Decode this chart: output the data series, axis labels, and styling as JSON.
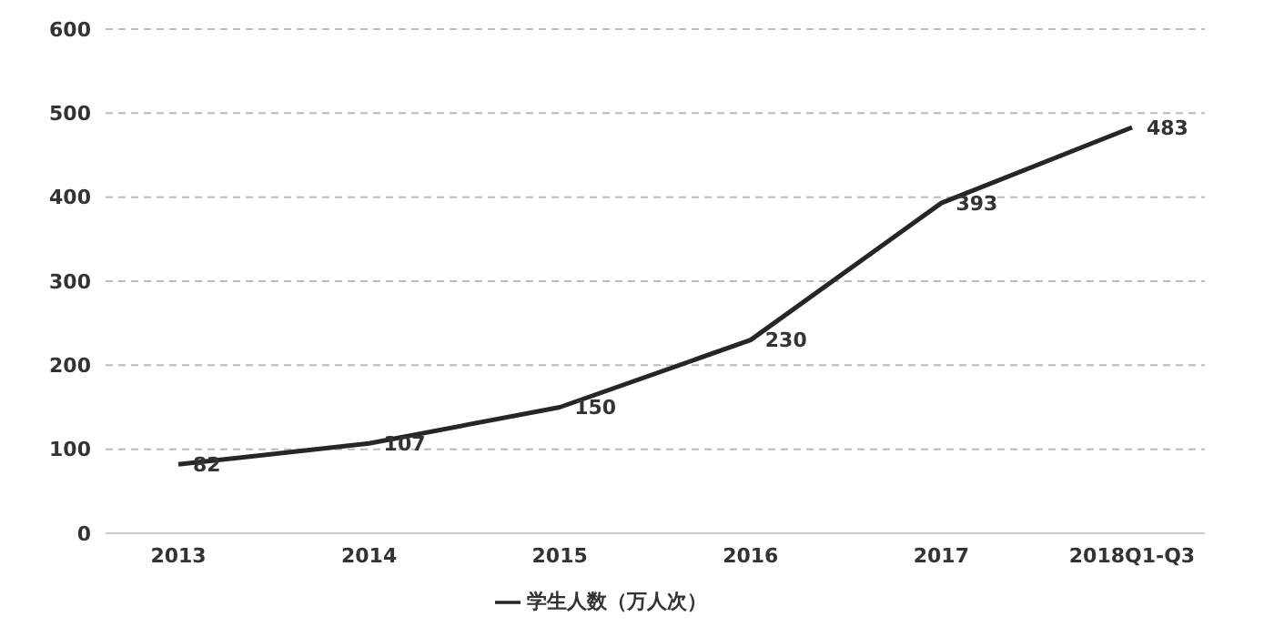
{
  "chart_data": {
    "type": "line",
    "categories": [
      "2013",
      "2014",
      "2015",
      "2016",
      "2017",
      "2018Q1-Q3"
    ],
    "series": [
      {
        "name": "学生人数（万人次）",
        "color": "#262626",
        "values": [
          82,
          107,
          150,
          230,
          393,
          483
        ]
      }
    ],
    "ylim": [
      0,
      600
    ],
    "yticks": [
      0,
      100,
      200,
      300,
      400,
      500,
      600
    ],
    "grid": "y",
    "legend": "bottom",
    "marker": "none",
    "line_style": "solid",
    "data_labels": true
  }
}
